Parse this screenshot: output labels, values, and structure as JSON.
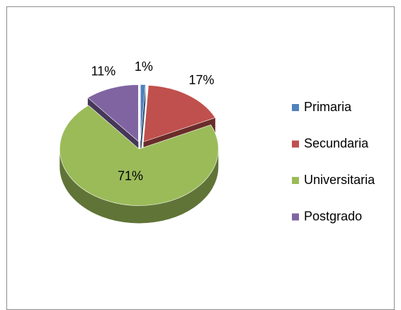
{
  "chart_data": {
    "type": "pie",
    "categories": [
      "Primaria",
      "Secundaria",
      "Universitaria",
      "Postgrado"
    ],
    "values": [
      1,
      17,
      71,
      11
    ],
    "value_labels": [
      "1%",
      "17%",
      "71%",
      "11%"
    ],
    "colors": [
      "#4f81bd",
      "#c0504d",
      "#9bbb59",
      "#8064a2"
    ],
    "legend": "right"
  }
}
